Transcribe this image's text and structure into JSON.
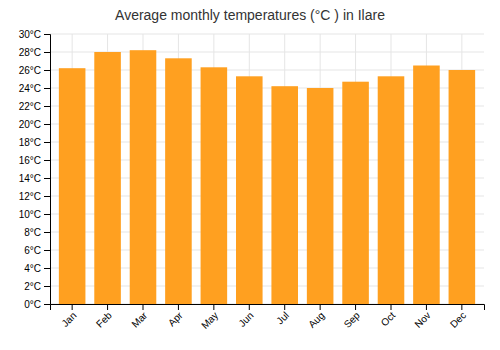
{
  "chart_data": {
    "type": "bar",
    "title": "Average monthly temperatures (°C ) in Ilare",
    "categories": [
      "Jan",
      "Feb",
      "Mar",
      "Apr",
      "May",
      "Jun",
      "Jul",
      "Aug",
      "Sep",
      "Oct",
      "Nov",
      "Dec"
    ],
    "values": [
      26.2,
      28.0,
      28.2,
      27.3,
      26.3,
      25.3,
      24.2,
      24.0,
      24.7,
      25.3,
      26.5,
      26.0
    ],
    "color": "#FFA020",
    "ylim": [
      0,
      30
    ],
    "yticks": [
      {
        "value": 0,
        "label": "0°C"
      },
      {
        "value": 2,
        "label": "2°C"
      },
      {
        "value": 4,
        "label": "4°C"
      },
      {
        "value": 6,
        "label": "6°C"
      },
      {
        "value": 8,
        "label": "8°C"
      },
      {
        "value": 10,
        "label": "10°C"
      },
      {
        "value": 12,
        "label": "12°C"
      },
      {
        "value": 14,
        "label": "14°C"
      },
      {
        "value": 16,
        "label": "16°C"
      },
      {
        "value": 18,
        "label": "18°C"
      },
      {
        "value": 20,
        "label": "20°C"
      },
      {
        "value": 22,
        "label": "22°C"
      },
      {
        "value": 24,
        "label": "24°C"
      },
      {
        "value": 26,
        "label": "26°C"
      },
      {
        "value": 28,
        "label": "28°C"
      },
      {
        "value": 30,
        "label": "30°C"
      }
    ],
    "grid": true
  }
}
